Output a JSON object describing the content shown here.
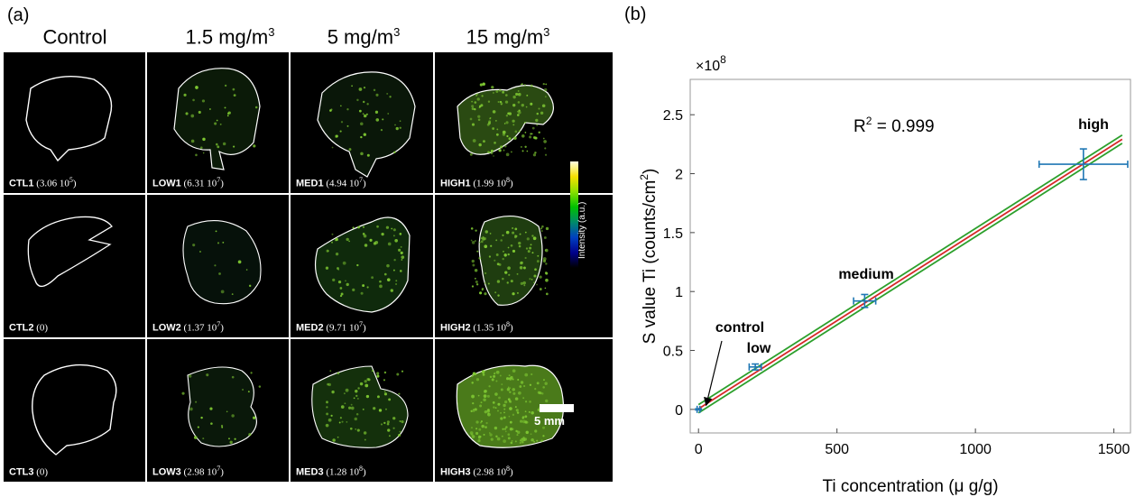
{
  "panel_a": {
    "label": "(a)",
    "columns": [
      {
        "text": "Control",
        "unit_sup": ""
      },
      {
        "text": "1.5 mg/m",
        "unit_sup": "3"
      },
      {
        "text": "5 mg/m",
        "unit_sup": "3"
      },
      {
        "text": "15 mg/m",
        "unit_sup": "3"
      }
    ],
    "tiles": [
      [
        {
          "id": "CTL1",
          "value": "3.06 10",
          "exp": "5"
        },
        {
          "id": "LOW1",
          "value": "6.31 10",
          "exp": "7"
        },
        {
          "id": "MED1",
          "value": "4.94 10",
          "exp": "7"
        },
        {
          "id": "HIGH1",
          "value": "1.99 10",
          "exp": "8"
        }
      ],
      [
        {
          "id": "CTL2",
          "value": "0",
          "exp": ""
        },
        {
          "id": "LOW2",
          "value": "1.37 10",
          "exp": "7"
        },
        {
          "id": "MED2",
          "value": "9.71 10",
          "exp": "7"
        },
        {
          "id": "HIGH2",
          "value": "1.35 10",
          "exp": "8"
        }
      ],
      [
        {
          "id": "CTL3",
          "value": "0",
          "exp": ""
        },
        {
          "id": "LOW3",
          "value": "2.98 10",
          "exp": "7"
        },
        {
          "id": "MED3",
          "value": "1.28 10",
          "exp": "8"
        },
        {
          "id": "HIGH3",
          "value": "2.98 10",
          "exp": "8"
        }
      ]
    ],
    "colorbar_label": "Intensity (a.u.)",
    "scale_bar_label": "5 mm",
    "intensity_color": "#7ec832"
  },
  "chart_data": {
    "type": "scatter",
    "panel_label": "(b)",
    "xlabel": "Ti concentration (μ g/g)",
    "ylabel": "S value Ti (counts/cm",
    "ylabel_sup": "2",
    "ylabel_end": ")",
    "y_multiplier": "×10",
    "y_multiplier_exp": "8",
    "xlim": [
      -30,
      1560
    ],
    "ylim": [
      -0.2,
      2.8
    ],
    "xticks": [
      0,
      500,
      1000,
      1500
    ],
    "yticks": [
      0,
      0.5,
      1,
      1.5,
      2,
      2.5
    ],
    "ytick_labels": [
      "0",
      "0.5",
      "1",
      "1.5",
      "2",
      "2.5"
    ],
    "r2_text": "R",
    "r2_sup": "2",
    "r2_value": " = 0.999",
    "points": [
      {
        "label": "control",
        "x": 0,
        "y": 0.0,
        "xerr": 5,
        "yerr": 0.005
      },
      {
        "label": "low",
        "x": 205,
        "y": 0.36,
        "xerr": 22,
        "yerr": 0.025
      },
      {
        "label": "medium",
        "x": 600,
        "y": 0.92,
        "xerr": 40,
        "yerr": 0.055
      },
      {
        "label": "high",
        "x": 1390,
        "y": 2.08,
        "xerr": 160,
        "yerr": 0.13
      }
    ],
    "fit": {
      "slope": 0.001495,
      "intercept": 0.005,
      "band": 0.035
    },
    "colors": {
      "points": "#1f77b4",
      "fit": "#d62728",
      "band": "#2ca02c"
    }
  }
}
